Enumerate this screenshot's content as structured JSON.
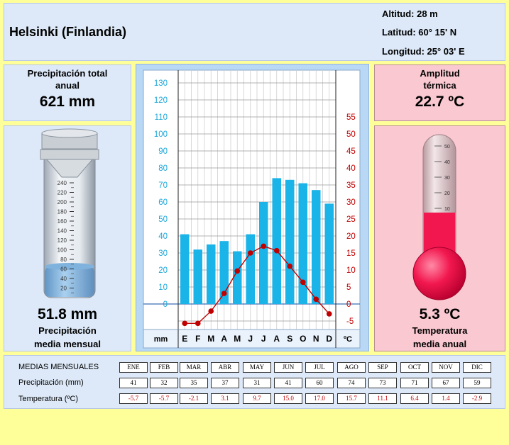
{
  "header": {
    "city": "Helsinki (Finlandia)",
    "altitude": "Altitud: 28 m",
    "latitude": "Latitud: 60° 15' N",
    "longitude": "Longitud:  25° 03' E"
  },
  "precip_total": {
    "label_line1": "Precipitación total",
    "label_line2": "anual",
    "value": "621 mm"
  },
  "precip_mean": {
    "value": "51.8 mm",
    "label_line1": "Precipitación",
    "label_line2": "media mensual",
    "gauge_ticks": [
      "240",
      "220",
      "200",
      "180",
      "160",
      "140",
      "120",
      "100",
      "80",
      "60",
      "40",
      "20"
    ]
  },
  "amplitude": {
    "label_line1": "Amplitud",
    "label_line2": "térmica",
    "value": "22.7 ºC"
  },
  "temp_mean": {
    "value": "5.3 ºC",
    "label_line1": "Temperatura",
    "label_line2": "media anual",
    "thermo_ticks": [
      "50",
      "40",
      "30",
      "20",
      "10"
    ]
  },
  "colors": {
    "bar": "#1ab4e8",
    "temp_line": "#c00000",
    "precip_axis": "#1aa6d8",
    "temp_axis": "#c00000"
  },
  "chart_data": {
    "type": "bar",
    "categories": [
      "E",
      "F",
      "M",
      "A",
      "M",
      "J",
      "J",
      "A",
      "S",
      "O",
      "N",
      "D"
    ],
    "series": [
      {
        "values": [
          41,
          32,
          35,
          37,
          31,
          41,
          60,
          74,
          73,
          71,
          67,
          59
        ]
      },
      {
        "values": [
          -5.7,
          -5.7,
          -2.1,
          3.1,
          9.7,
          15.0,
          17.0,
          15.7,
          11.1,
          6.4,
          1.4,
          -2.9
        ]
      }
    ],
    "left_axis": {
      "ticks": [
        "130",
        "120",
        "110",
        "100",
        "90",
        "80",
        "70",
        "60",
        "50",
        "40",
        "30",
        "20",
        "10",
        "0"
      ],
      "unit": "mm",
      "ylim": [
        -10,
        130
      ]
    },
    "right_axis": {
      "ticks": [
        "55",
        "50",
        "45",
        "40",
        "35",
        "30",
        "25",
        "20",
        "15",
        "10",
        "5",
        "0",
        "-5"
      ],
      "unit": "ºC",
      "ylim": [
        -5,
        65
      ]
    },
    "grid": true
  },
  "table": {
    "title": "MEDIAS MENSUALES",
    "months": [
      "ENE",
      "FEB",
      "MAR",
      "ABR",
      "MAY",
      "JUN",
      "JUL",
      "AGO",
      "SEP",
      "OCT",
      "NOV",
      "DIC"
    ],
    "precip_label": "Precipitación (mm)",
    "precip": [
      "41",
      "32",
      "35",
      "37",
      "31",
      "41",
      "60",
      "74",
      "73",
      "71",
      "67",
      "59"
    ],
    "temp_label": "Temperatura (ºC)",
    "temp": [
      "-5.7",
      "-5.7",
      "-2.1",
      "3.1",
      "9.7",
      "15.0",
      "17.0",
      "15.7",
      "11.1",
      "6.4",
      "1.4",
      "-2.9"
    ]
  }
}
